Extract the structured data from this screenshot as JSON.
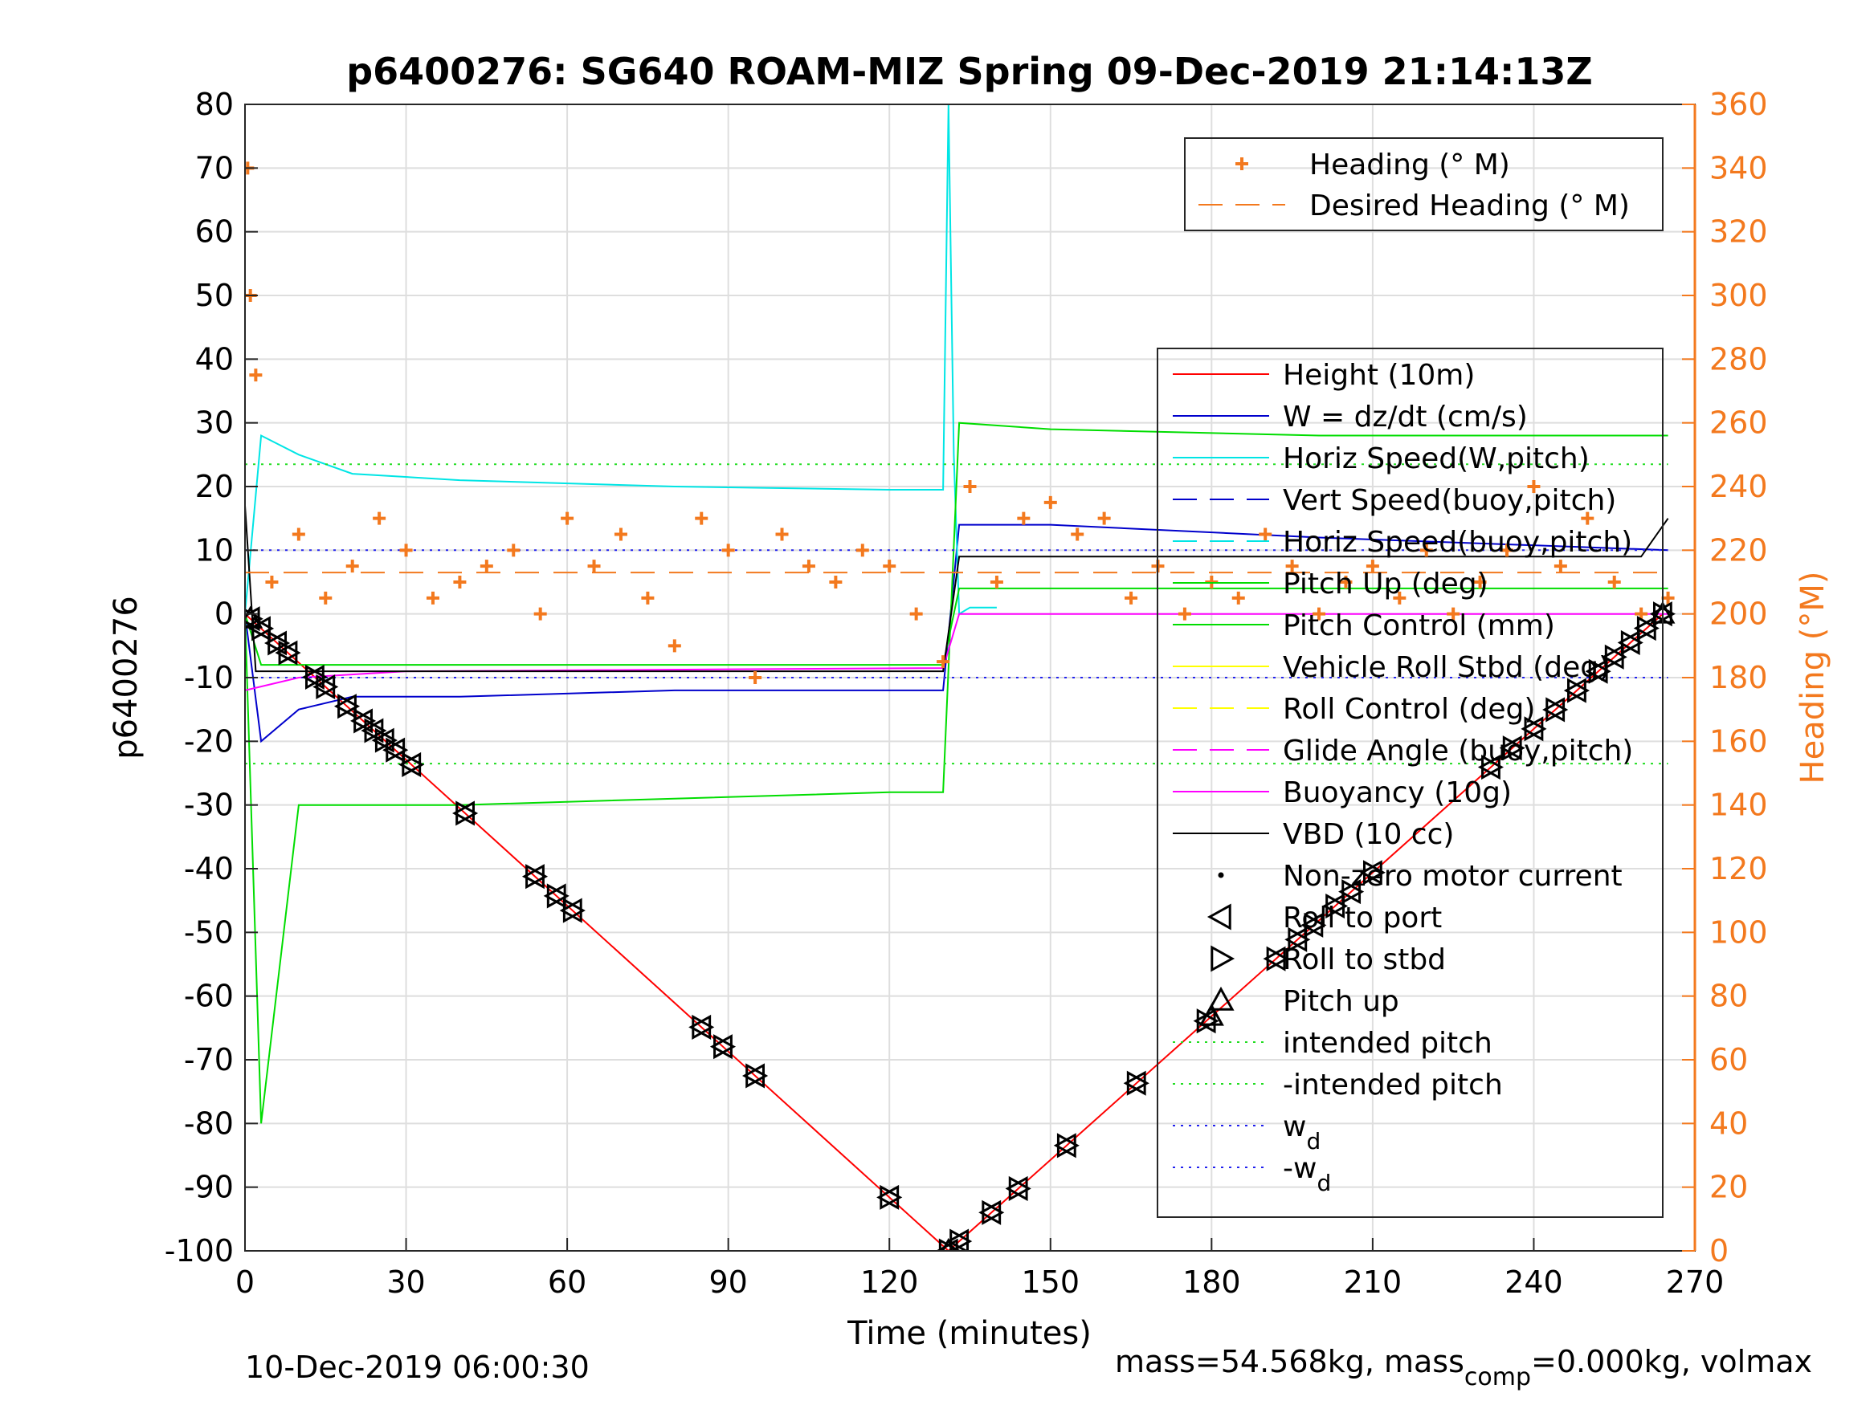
{
  "chart_data": {
    "type": "line",
    "title": "p6400276: SG640 ROAM-MIZ Spring 09-Dec-2019 21:14:13Z",
    "xlabel": "Time (minutes)",
    "ylabel_left": "p6400276",
    "ylabel_right": "Heading (°M)",
    "xlim": [
      0,
      270
    ],
    "ylim_left": [
      -100,
      80
    ],
    "ylim_right": [
      0,
      360
    ],
    "x_ticks": [
      "0",
      "30",
      "60",
      "90",
      "120",
      "150",
      "180",
      "210",
      "240",
      "270"
    ],
    "y_ticks_left": [
      "80",
      "70",
      "60",
      "50",
      "40",
      "30",
      "20",
      "10",
      "0",
      "-10",
      "-20",
      "-30",
      "-40",
      "-50",
      "-60",
      "-70",
      "-80",
      "-90",
      "-100"
    ],
    "y_ticks_right": [
      "360",
      "340",
      "320",
      "300",
      "280",
      "260",
      "240",
      "220",
      "200",
      "180",
      "160",
      "140",
      "120",
      "100",
      "80",
      "60",
      "40",
      "20",
      "0"
    ],
    "grid": true,
    "colors": {
      "height": "#ff0000",
      "w": "#0000cc",
      "horiz_speed": "#00e5e5",
      "pitch_control": "#00dd00",
      "roll": "#ffff00",
      "glide": "#ff00ff",
      "vbd": "#000000",
      "heading": "#f3791e",
      "intended_pitch": "#22dd22",
      "wd": "#2222ee"
    },
    "legend_top": [
      {
        "label": "Heading (° M)",
        "style": "plus",
        "color": "#f3791e"
      },
      {
        "label": "Desired Heading (° M)",
        "style": "dash",
        "color": "#f3791e"
      }
    ],
    "legend_main": [
      {
        "label": "Height (10m)",
        "style": "solid",
        "color": "#ff0000"
      },
      {
        "label": "W = dz/dt (cm/s)",
        "style": "solid",
        "color": "#0000cc"
      },
      {
        "label": "Horiz Speed(W,pitch)",
        "style": "solid",
        "color": "#00e5e5"
      },
      {
        "label": "Vert Speed(buoy,pitch)",
        "style": "dash",
        "color": "#0000cc"
      },
      {
        "label": "Horiz Speed(buoy,pitch)",
        "style": "dash",
        "color": "#00e5e5"
      },
      {
        "label": "Pitch Up (deg)",
        "style": "solid",
        "color": "#00dd00"
      },
      {
        "label": "Pitch Control (mm)",
        "style": "solid",
        "color": "#00dd00"
      },
      {
        "label": "Vehicle Roll Stbd (deg)",
        "style": "solid",
        "color": "#ffff00"
      },
      {
        "label": "Roll Control (deg)",
        "style": "dash",
        "color": "#ffff00"
      },
      {
        "label": "Glide Angle (buoy,pitch)",
        "style": "dash",
        "color": "#ff00ff"
      },
      {
        "label": "Buoyancy (10g)",
        "style": "solid",
        "color": "#ff00ff"
      },
      {
        "label": "VBD (10 cc)",
        "style": "solid",
        "color": "#000000"
      },
      {
        "label": "Non-zero motor current",
        "style": "dot",
        "color": "#000000"
      },
      {
        "label": "Roll to port",
        "style": "tri-left",
        "color": "#000000"
      },
      {
        "label": "Roll to stbd",
        "style": "tri-right",
        "color": "#000000"
      },
      {
        "label": "Pitch up",
        "style": "tri-up",
        "color": "#000000"
      },
      {
        "label": "intended pitch",
        "style": "dotted",
        "color": "#22dd22"
      },
      {
        "label": "-intended pitch",
        "style": "dotted",
        "color": "#22dd22"
      },
      {
        "label": "w",
        "sub": "d",
        "style": "dotted",
        "color": "#2222ee"
      },
      {
        "label": "-w",
        "sub": "d",
        "style": "dotted",
        "color": "#2222ee"
      }
    ],
    "series": [
      {
        "name": "Height (10m)",
        "x": [
          0,
          131,
          264
        ],
        "y": [
          0,
          -100,
          0
        ]
      },
      {
        "name": "W = dz/dt (cm/s)",
        "x": [
          0,
          3,
          10,
          20,
          40,
          80,
          120,
          130,
          133,
          150,
          200,
          265
        ],
        "y": [
          0,
          -20,
          -15,
          -13,
          -13,
          -12,
          -12,
          -12,
          14,
          14,
          12,
          10
        ]
      },
      {
        "name": "Horiz Speed(W,pitch)",
        "x": [
          0,
          3,
          10,
          20,
          40,
          80,
          120,
          130,
          131,
          132,
          133,
          135,
          140
        ],
        "y": [
          0,
          28,
          25,
          22,
          21,
          20,
          19.5,
          19.5,
          80,
          25,
          0,
          1,
          1
        ]
      },
      {
        "name": "Pitch Control (mm)",
        "x": [
          0,
          3,
          10,
          40,
          80,
          120,
          130,
          133,
          150,
          200,
          265
        ],
        "y": [
          0,
          -80,
          -30,
          -30,
          -29,
          -28,
          -28,
          30,
          29,
          28,
          28
        ]
      },
      {
        "name": "Pitch Up (deg)",
        "x": [
          0,
          3,
          130,
          133,
          265
        ],
        "y": [
          0,
          -8,
          -8,
          4,
          4
        ]
      },
      {
        "name": "Buoyancy (10g)",
        "x": [
          0,
          10,
          30,
          130,
          133,
          265
        ],
        "y": [
          -12,
          -10,
          -9,
          -8.5,
          0,
          0
        ]
      },
      {
        "name": "VBD (10 cc)",
        "x": [
          0,
          2,
          130,
          133,
          260,
          265
        ],
        "y": [
          17,
          -9,
          -9,
          9,
          9,
          15
        ]
      },
      {
        "name": "intended pitch",
        "x": [
          0,
          265
        ],
        "y": [
          23.5,
          23.5
        ]
      },
      {
        "name": "-intended pitch",
        "x": [
          0,
          265
        ],
        "y": [
          -23.5,
          -23.5
        ]
      },
      {
        "name": "w_d",
        "x": [
          0,
          265
        ],
        "y": [
          10,
          10
        ]
      },
      {
        "name": "-w_d",
        "x": [
          0,
          265
        ],
        "y": [
          -10,
          -10
        ]
      },
      {
        "name": "Heading (° M)",
        "axis": "right",
        "x": [
          0.5,
          1,
          2,
          5,
          10,
          15,
          20,
          25,
          30,
          35,
          40,
          45,
          50,
          55,
          60,
          65,
          70,
          75,
          80,
          85,
          90,
          95,
          100,
          105,
          110,
          115,
          120,
          125,
          130,
          135,
          140,
          145,
          150,
          155,
          160,
          165,
          170,
          175,
          180,
          185,
          190,
          195,
          200,
          205,
          210,
          215,
          220,
          225,
          230,
          235,
          240,
          245,
          250,
          255,
          260,
          265
        ],
        "y": [
          340,
          300,
          275,
          210,
          225,
          205,
          215,
          230,
          220,
          205,
          210,
          215,
          220,
          200,
          230,
          215,
          225,
          205,
          190,
          230,
          220,
          180,
          225,
          215,
          210,
          220,
          215,
          200,
          185,
          240,
          210,
          230,
          235,
          225,
          230,
          205,
          215,
          200,
          210,
          205,
          225,
          215,
          200,
          210,
          215,
          205,
          220,
          200,
          210,
          220,
          240,
          215,
          230,
          210,
          200,
          205
        ]
      },
      {
        "name": "Desired Heading (° M)",
        "axis": "right",
        "x": [
          0,
          265
        ],
        "y": [
          213,
          213
        ]
      }
    ],
    "roll_port_x": [
      1,
      3,
      6,
      8,
      13,
      15,
      19,
      22,
      24,
      26,
      28,
      31,
      41,
      54,
      58,
      61,
      85,
      89,
      95,
      120,
      131,
      133,
      139,
      144,
      153,
      166,
      179,
      192,
      196,
      199,
      203,
      206,
      210,
      232,
      236,
      240,
      244,
      248,
      252,
      255,
      258,
      261,
      264
    ],
    "roll_stbd_x": [
      1,
      3,
      6,
      8,
      13,
      15,
      19,
      22,
      24,
      26,
      28,
      31,
      41,
      54,
      58,
      61,
      85,
      89,
      95,
      120,
      131,
      133,
      139,
      144,
      153,
      166,
      179,
      192,
      196,
      199,
      203,
      206,
      210,
      232,
      236,
      240,
      244,
      248,
      252,
      255,
      258,
      261,
      264
    ],
    "pitch_up_x": [
      1,
      131,
      180,
      264
    ]
  },
  "footer": {
    "date": "10-Dec-2019 06:00:30",
    "mass_a": "mass=54.568kg, mass",
    "mass_sub": "comp",
    "mass_b": "=0.000kg, volmax"
  }
}
